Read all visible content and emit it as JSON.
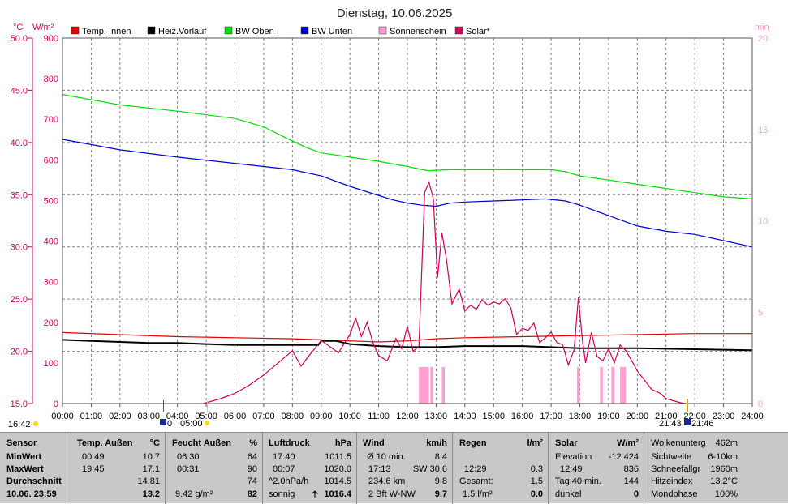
{
  "chart_data": {
    "type": "line",
    "title": "Dienstag, 10.06.2025",
    "axis_left1_label": "°C",
    "axis_left2_label": "W/m²",
    "axis_right_label": "min",
    "y_temp_ticks": [
      "50.0",
      "45.0",
      "40.0",
      "35.0",
      "30.0",
      "25.0",
      "20.0",
      "15.0"
    ],
    "y_solar_ticks": [
      "900",
      "800",
      "700",
      "600",
      "500",
      "400",
      "300",
      "200",
      "100",
      "0"
    ],
    "y_min_ticks": [
      "20",
      "15",
      "10",
      "5",
      "0"
    ],
    "x_ticks": [
      "00:00",
      "01:00",
      "02:00",
      "03:00",
      "04:00",
      "05:00",
      "06:00",
      "07:00",
      "08:00",
      "09:00",
      "10:00",
      "11:00",
      "12:00",
      "13:00",
      "14:00",
      "15:00",
      "16:00",
      "17:00",
      "18:00",
      "19:00",
      "20:00",
      "21:00",
      "22:00",
      "23:00",
      "24:00"
    ],
    "temp_range": [
      15,
      50
    ],
    "solar_range": [
      0,
      900
    ],
    "min_range": [
      0,
      20
    ],
    "legend": [
      {
        "name": "Temp. Innen",
        "color": "#e00000"
      },
      {
        "name": "Heiz.Vorlauf",
        "color": "#000000"
      },
      {
        "name": "BW Oben",
        "color": "#00dd00"
      },
      {
        "name": "BW Unten",
        "color": "#0000cc"
      },
      {
        "name": "Sonnenschein",
        "color": "#ff9fcf"
      },
      {
        "name": "Solar*",
        "color": "#d0005a"
      }
    ],
    "series": [
      {
        "name": "Temp. Innen",
        "color": "#e00000",
        "x": [
          0,
          2,
          4,
          6,
          8,
          9,
          10,
          11,
          12,
          13,
          14,
          16,
          18,
          20,
          22,
          24
        ],
        "y": [
          21.8,
          21.6,
          21.4,
          21.3,
          21.2,
          21.1,
          21.0,
          20.9,
          21.0,
          21.2,
          21.3,
          21.4,
          21.5,
          21.6,
          21.7,
          21.7
        ]
      },
      {
        "name": "Heiz.Vorlauf",
        "color": "#000000",
        "x": [
          0,
          1,
          2,
          3,
          4,
          5,
          6,
          7,
          8,
          8.9,
          9.0,
          9.5,
          10,
          11,
          12,
          13,
          14,
          16,
          18,
          20,
          22,
          24
        ],
        "y": [
          21.1,
          21.0,
          20.9,
          20.8,
          20.8,
          20.7,
          20.6,
          20.6,
          20.6,
          20.6,
          21.0,
          21.0,
          20.7,
          20.5,
          20.4,
          20.4,
          20.5,
          20.5,
          20.3,
          20.3,
          20.2,
          20.1
        ]
      },
      {
        "name": "BW Oben",
        "color": "#00dd00",
        "x": [
          0,
          2,
          4,
          6,
          7,
          7.8,
          8.5,
          9,
          10,
          11,
          12,
          12.7,
          13.5,
          15,
          16.5,
          17,
          17.5,
          18,
          19,
          20,
          21,
          22,
          23,
          24
        ],
        "y": [
          44.6,
          43.6,
          43.0,
          42.3,
          41.5,
          40.4,
          39.5,
          39.0,
          38.6,
          38.2,
          37.7,
          37.3,
          37.4,
          37.4,
          37.4,
          37.4,
          37.2,
          36.8,
          36.4,
          36.0,
          35.6,
          35.2,
          34.8,
          34.6
        ]
      },
      {
        "name": "BW Unten",
        "color": "#0000cc",
        "x": [
          0,
          2,
          4,
          6,
          8,
          9,
          10,
          10.8,
          11.5,
          12,
          12.5,
          13,
          13.5,
          14,
          15,
          16,
          16.8,
          17.5,
          18,
          19,
          20,
          21,
          22,
          23,
          24
        ],
        "y": [
          40.3,
          39.3,
          38.6,
          38.0,
          37.4,
          36.8,
          35.8,
          35.1,
          34.5,
          34.2,
          34.0,
          33.9,
          34.2,
          34.3,
          34.4,
          34.5,
          34.6,
          34.4,
          34.0,
          33.0,
          32.0,
          31.5,
          31.2,
          30.6,
          30.0
        ]
      },
      {
        "name": "Solar*",
        "color": "#d0005a",
        "axis": "solar",
        "x": [
          4.9,
          5.5,
          6,
          6.5,
          7,
          7.5,
          8,
          8.3,
          8.6,
          9,
          9.3,
          9.6,
          10,
          10.2,
          10.4,
          10.6,
          10.8,
          11,
          11.3,
          11.6,
          11.8,
          12,
          12.2,
          12.4,
          12.6,
          12.75,
          12.9,
          13.05,
          13.2,
          13.35,
          13.55,
          13.8,
          14,
          14.2,
          14.4,
          14.6,
          14.8,
          15,
          15.2,
          15.4,
          15.6,
          15.8,
          16,
          16.2,
          16.4,
          16.6,
          16.8,
          17,
          17.2,
          17.4,
          17.6,
          17.8,
          17.95,
          18.1,
          18.2,
          18.4,
          18.6,
          18.8,
          19,
          19.2,
          19.4,
          19.6,
          19.8,
          20,
          20.2,
          20.5,
          20.8,
          21,
          21.3,
          21.5,
          21.7
        ],
        "y": [
          0,
          12,
          25,
          45,
          70,
          100,
          130,
          92,
          120,
          155,
          140,
          125,
          170,
          210,
          165,
          200,
          150,
          118,
          105,
          160,
          135,
          190,
          128,
          142,
          520,
          545,
          505,
          310,
          420,
          360,
          245,
          282,
          228,
          242,
          232,
          255,
          242,
          250,
          245,
          258,
          235,
          170,
          185,
          180,
          198,
          150,
          162,
          176,
          150,
          145,
          95,
          132,
          262,
          150,
          100,
          175,
          116,
          105,
          135,
          100,
          144,
          130,
          106,
          80,
          62,
          35,
          25,
          12,
          6,
          2,
          0
        ]
      }
    ],
    "sunshine_bars": [
      [
        12.4,
        12.75
      ],
      [
        12.8,
        12.9
      ],
      [
        13.2,
        13.3
      ],
      [
        17.9,
        18.0
      ],
      [
        18.7,
        18.8
      ],
      [
        19.1,
        19.2
      ],
      [
        19.4,
        19.6
      ]
    ],
    "sunshine_bar_height_min": 2.0
  },
  "time_markers": {
    "sunrise_left": "16:42",
    "mark_0400": "0",
    "mark_0500": "05:00",
    "sunset_2143": "21:43",
    "sunset_2146": "21:46"
  },
  "panel": {
    "sensor": {
      "h1": "Sensor",
      "min": "MinWert",
      "max": "MaxWert",
      "avg": "Durchschnitt",
      "date": "10.06. 23:59"
    },
    "temp": {
      "h1": "Temp. Außen",
      "h2": "°C",
      "min_t": "00:49",
      "min_v": "10.7",
      "max_t": "19:45",
      "max_v": "17.1",
      "avg_v": "14.81",
      "cur_v": "13.2"
    },
    "feucht": {
      "h1": "Feucht Außen",
      "h2": "%",
      "min_t": "06:30",
      "min_v": "64",
      "max_t": "00:31",
      "max_v": "90",
      "avg_v": "74",
      "abs": "9.42 g/m²",
      "cur_v": "82"
    },
    "luft": {
      "h1": "Luftdruck",
      "h2": "hPa",
      "min_t": "17:40",
      "min_v": "1011.5",
      "max_t": "00:07",
      "max_v": "1020.0",
      "trend_l": "^2.0hPa/h",
      "trend_v": "1014.5",
      "state": "sonnig",
      "cur_v": "1016.4"
    },
    "wind": {
      "h1": "Wind",
      "h2": "km/h",
      "r1_l": "Ø 10 min.",
      "r1_v": "8.4",
      "r2_l": "17:13",
      "r2_m": "SW 30.6",
      "r3_l": "234.6 km",
      "r3_v": "9.8",
      "r4_l": "2 Bft W-NW",
      "r4_v": "9.7"
    },
    "regen": {
      "h1": "Regen",
      "h2": "l/m²",
      "r2_l": "12:29",
      "r2_v": "0.3",
      "r3_l": "Gesamt:",
      "r3_v": "1.5",
      "r4_l": "1.5 l/m²",
      "r4_v": "0.0"
    },
    "solar": {
      "h1": "Solar",
      "h2": "W/m²",
      "r1_l": "Elevation",
      "r1_v": "-12.424",
      "r2_l": "12:49",
      "r2_v": "836",
      "r3_l": "Tag:40 min.",
      "r3_v": "144",
      "r4_l": "dunkel",
      "r4_v": "0"
    },
    "misc": {
      "r0_l": "Wolkenunterg",
      "r0_v": "462m",
      "r1_l": "Sichtweite",
      "r1_v": "6-10km",
      "r2_l": "Schneefallgr",
      "r2_v": "1960m",
      "r3_l": "Hitzeindex",
      "r3_v": "13.2°C",
      "r4_l": "Mondphase",
      "r4_v": "100%"
    }
  }
}
